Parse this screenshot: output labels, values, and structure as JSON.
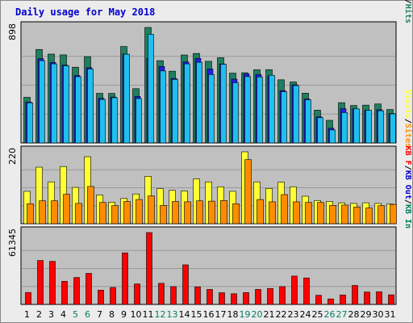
{
  "chart_data": {
    "type": "bar",
    "title": "Daily usage for May 2018",
    "categories": [
      "1",
      "2",
      "3",
      "4",
      "5",
      "6",
      "7",
      "8",
      "9",
      "10",
      "11",
      "12",
      "13",
      "14",
      "15",
      "16",
      "17",
      "18",
      "19",
      "20",
      "21",
      "22",
      "23",
      "24",
      "25",
      "26",
      "27",
      "28",
      "29",
      "30",
      "31"
    ],
    "weekend_days": [
      "5",
      "6",
      "12",
      "13",
      "19",
      "20",
      "26",
      "27"
    ],
    "colors": {
      "title": "#0000cc",
      "weekday_label": "#000000",
      "weekend_label": "#008060",
      "plot_bg": "#c0c0c0",
      "hits": "#1f7f5f",
      "files": "#1f1fdf",
      "pages": "#1fbfef",
      "visits": "#ffff33",
      "sites": "#ff8c00",
      "kbin": "#008060",
      "kbout": "#0000cc",
      "kbf": "#ff0000"
    },
    "panels": [
      {
        "name": "pages-files-hits",
        "ymax": 898,
        "ymax_label": "898",
        "legend": [
          "Pages",
          "/",
          "Files",
          "/",
          "Hits"
        ],
        "legend_colors": [
          "#1fbfef",
          "#000000",
          "#1f1fdf",
          "#000000",
          "#1f7f5f"
        ],
        "series": [
          {
            "name": "Hits",
            "values": [
              355,
              727,
              691,
              685,
              589,
              671,
              386,
              385,
              750,
              422,
              898,
              640,
              558,
              684,
              696,
              635,
              663,
              543,
              546,
              569,
              570,
              491,
              474,
              387,
              255,
              176,
              313,
              291,
              294,
              303,
              260
            ]
          },
          {
            "name": "Files",
            "values": [
              318,
              655,
              625,
              605,
              524,
              585,
              347,
              357,
              690,
              362,
              659,
              594,
              502,
              630,
              657,
              575,
              614,
              496,
              536,
              531,
              522,
              407,
              452,
              341,
              202,
              114,
              266,
              265,
              254,
              258,
              228
            ]
          },
          {
            "name": "Pages",
            "values": [
              312,
              640,
              615,
              600,
              515,
              575,
              338,
              352,
              690,
              345,
              845,
              560,
              494,
              615,
              627,
              532,
              612,
              468,
              516,
              513,
              526,
              398,
              446,
              335,
              196,
              101,
              236,
              265,
              254,
              250,
              226
            ]
          }
        ]
      },
      {
        "name": "visits-sites",
        "ymax": 220,
        "ymax_label": "220",
        "legend": [
          "Visits",
          "/",
          "Sites"
        ],
        "legend_colors": [
          "#ffff33",
          "#000000",
          "#ff8c00"
        ],
        "series": [
          {
            "name": "Visits",
            "values": [
              99,
              173,
              128,
              175,
              111,
              205,
              88,
              66,
              77,
              91,
              145,
              107,
              102,
              100,
              137,
              128,
              113,
              99,
              220,
              128,
              108,
              127,
              113,
              84,
              71,
              68,
              64,
              62,
              64,
              62,
              60
            ]
          },
          {
            "name": "Sites",
            "values": [
              61,
              70,
              70,
              90,
              62,
              114,
              65,
              55,
              68,
              74,
              85,
              56,
              68,
              67,
              70,
              69,
              71,
              61,
              196,
              74,
              67,
              89,
              67,
              65,
              65,
              56,
              57,
              51,
              48,
              55,
              59
            ]
          }
        ]
      },
      {
        "name": "kb",
        "ymax": 61345,
        "ymax_label": "61345",
        "legend": [
          "KB F",
          "/",
          "KB Out",
          "/",
          "KB In"
        ],
        "legend_colors": [
          "#ff0000",
          "#000000",
          "#0000cc",
          "#000000",
          "#008060"
        ],
        "series": [
          {
            "name": "KB F",
            "values": [
              10200,
              37500,
              36800,
              19700,
              23000,
              26500,
              12200,
              14500,
              44000,
              17500,
              61345,
              18000,
              15200,
              33800,
              15000,
              12800,
              10000,
              9100,
              10100,
              12800,
              13600,
              15200,
              24200,
              22600,
              7800,
              4700,
              8100,
              16200,
              10600,
              10800,
              8200
            ]
          }
        ]
      }
    ]
  }
}
